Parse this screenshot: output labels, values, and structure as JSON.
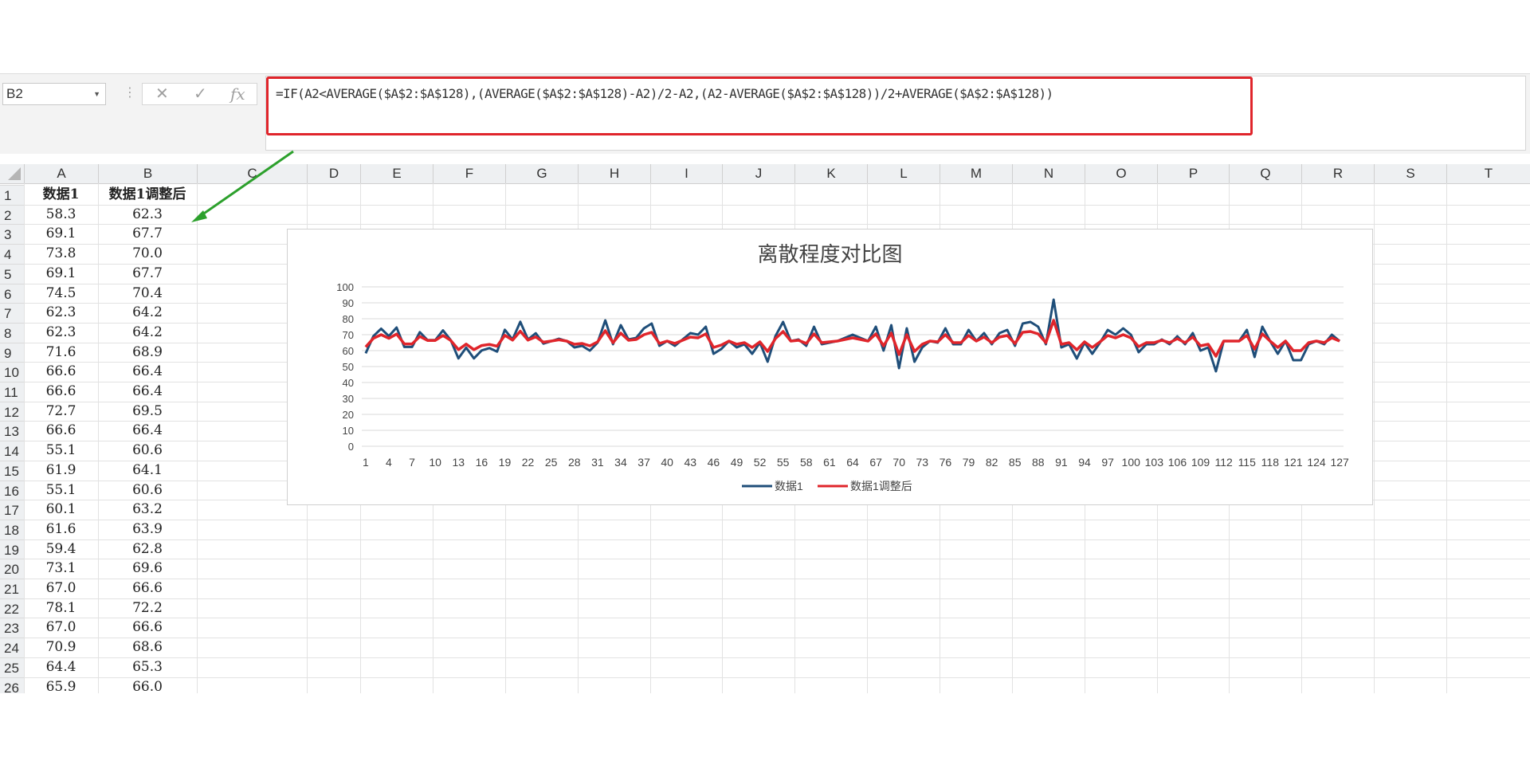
{
  "name_box": {
    "value": "B2"
  },
  "formula_bar": {
    "cancel_icon": "✕",
    "enter_icon": "✓",
    "fx_label": "fx",
    "formula": "=IF(A2<AVERAGE($A$2:$A$128),(AVERAGE($A$2:$A$128)-A2)/2-A2,(A2-AVERAGE($A$2:$A$128))/2+AVERAGE($A$2:$A$128))"
  },
  "columns": [
    "A",
    "B",
    "C",
    "D",
    "E",
    "F",
    "G",
    "H",
    "I",
    "J",
    "K",
    "L",
    "M",
    "N",
    "O",
    "P",
    "Q",
    "R",
    "S",
    "T"
  ],
  "rows": [
    "1",
    "2",
    "3",
    "4",
    "5",
    "6",
    "7",
    "8",
    "9",
    "10",
    "11",
    "12",
    "13",
    "14",
    "15",
    "16",
    "17",
    "18",
    "19",
    "20",
    "21",
    "22",
    "23",
    "24",
    "25",
    "26"
  ],
  "table": {
    "header_a": "数据1",
    "header_b": "数据1调整后",
    "col_a": [
      "58.3",
      "69.1",
      "73.8",
      "69.1",
      "74.5",
      "62.3",
      "62.3",
      "71.6",
      "66.6",
      "66.6",
      "72.7",
      "66.6",
      "55.1",
      "61.9",
      "55.1",
      "60.1",
      "61.6",
      "59.4",
      "73.1",
      "67.0",
      "78.1",
      "67.0",
      "70.9",
      "64.4",
      "65.9"
    ],
    "col_b": [
      "62.3",
      "67.7",
      "70.0",
      "67.7",
      "70.4",
      "64.2",
      "64.2",
      "68.9",
      "66.4",
      "66.4",
      "69.5",
      "66.4",
      "60.6",
      "64.1",
      "60.6",
      "63.2",
      "63.9",
      "62.8",
      "69.6",
      "66.6",
      "72.2",
      "66.6",
      "68.6",
      "65.3",
      "66.0"
    ]
  },
  "colors": {
    "series1": "#1f4e79",
    "series2": "#e0252b",
    "highlight": "#e0252b",
    "arrow": "#2ca02c"
  },
  "chart_data": {
    "type": "line",
    "title": "离散程度对比图",
    "ylim": [
      0,
      100
    ],
    "yticks": [
      "0",
      "10",
      "20",
      "30",
      "40",
      "50",
      "60",
      "70",
      "80",
      "90",
      "100"
    ],
    "xtick_labels": [
      "1",
      "4",
      "7",
      "10",
      "13",
      "16",
      "19",
      "22",
      "25",
      "28",
      "31",
      "34",
      "37",
      "40",
      "43",
      "46",
      "49",
      "52",
      "55",
      "58",
      "61",
      "64",
      "67",
      "70",
      "73",
      "76",
      "79",
      "82",
      "85",
      "88",
      "91",
      "94",
      "97",
      "100",
      "103",
      "106",
      "109",
      "112",
      "115",
      "118",
      "121",
      "124",
      "127"
    ],
    "grid": true,
    "legend_position": "bottom",
    "series": [
      {
        "name": "数据1",
        "values": [
          58.3,
          69.1,
          73.8,
          69.1,
          74.5,
          62.3,
          62.3,
          71.6,
          66.6,
          66.6,
          72.7,
          66.6,
          55.1,
          61.9,
          55.1,
          60.1,
          61.6,
          59.4,
          73.1,
          67.0,
          78.1,
          67.0,
          70.9,
          64.4,
          65.9,
          67.5,
          66.0,
          62.0,
          63.0,
          60.0,
          65.0,
          79.0,
          64.0,
          76.0,
          67.0,
          68.0,
          74.0,
          77.0,
          63.0,
          66.0,
          63.0,
          67.0,
          71.0,
          70.0,
          75.0,
          58.0,
          61.0,
          66.0,
          62.0,
          64.0,
          58.0,
          65.0,
          53.0,
          69.0,
          78.0,
          66.0,
          67.0,
          63.0,
          75.0,
          64.0,
          65.0,
          66.0,
          68.0,
          70.0,
          68.0,
          66.0,
          75.0,
          60.0,
          76.0,
          49.0,
          74.0,
          53.0,
          62.0,
          66.0,
          65.0,
          74.0,
          64.0,
          64.0,
          73.0,
          66.0,
          71.0,
          64.0,
          71.0,
          73.0,
          63.0,
          77.0,
          78.0,
          75.0,
          64.0,
          92.0,
          62.0,
          64.0,
          55.0,
          65.0,
          58.0,
          65.0,
          73.0,
          70.0,
          74.0,
          70.0,
          59.0,
          64.0,
          64.0,
          67.0,
          64.0,
          69.0,
          64.0,
          71.0,
          60.0,
          62.0,
          47.0,
          66.0,
          66.0,
          66.0,
          73.0,
          56.0,
          75.0,
          66.0,
          58.0,
          66.0,
          54.0,
          54.0,
          64.0,
          66.0,
          64.0,
          70.0,
          66.0
        ]
      },
      {
        "name": "数据1调整后",
        "values": [
          62.3,
          67.7,
          70.0,
          67.7,
          70.4,
          64.2,
          64.2,
          68.9,
          66.4,
          66.4,
          69.5,
          66.4,
          60.6,
          64.1,
          60.6,
          63.2,
          63.9,
          62.8,
          69.6,
          66.6,
          72.2,
          66.6,
          68.6,
          65.3,
          66.0,
          66.8,
          66.0,
          64.0,
          64.5,
          63.0,
          65.5,
          72.5,
          65.0,
          71.0,
          66.5,
          67.0,
          70.0,
          71.5,
          64.5,
          66.0,
          64.5,
          66.5,
          68.5,
          68.0,
          70.5,
          62.0,
          63.5,
          66.0,
          64.0,
          65.0,
          62.0,
          65.5,
          59.5,
          67.5,
          72.0,
          66.0,
          66.5,
          64.5,
          70.5,
          65.0,
          65.5,
          66.0,
          67.0,
          68.0,
          67.0,
          66.0,
          70.5,
          63.0,
          71.0,
          57.5,
          70.0,
          59.5,
          64.0,
          66.0,
          65.5,
          70.0,
          65.0,
          65.0,
          69.5,
          66.0,
          68.5,
          65.0,
          68.5,
          69.5,
          64.5,
          71.5,
          72.0,
          70.5,
          65.0,
          79.0,
          64.0,
          65.0,
          60.5,
          65.5,
          62.0,
          65.5,
          69.5,
          68.0,
          70.0,
          68.0,
          62.5,
          65.0,
          65.0,
          66.5,
          65.0,
          67.5,
          65.0,
          68.5,
          63.0,
          64.0,
          56.5,
          66.0,
          66.0,
          66.0,
          69.5,
          61.0,
          70.5,
          66.0,
          62.0,
          66.0,
          60.0,
          60.0,
          65.0,
          66.0,
          65.0,
          68.0,
          66.0
        ]
      }
    ]
  }
}
